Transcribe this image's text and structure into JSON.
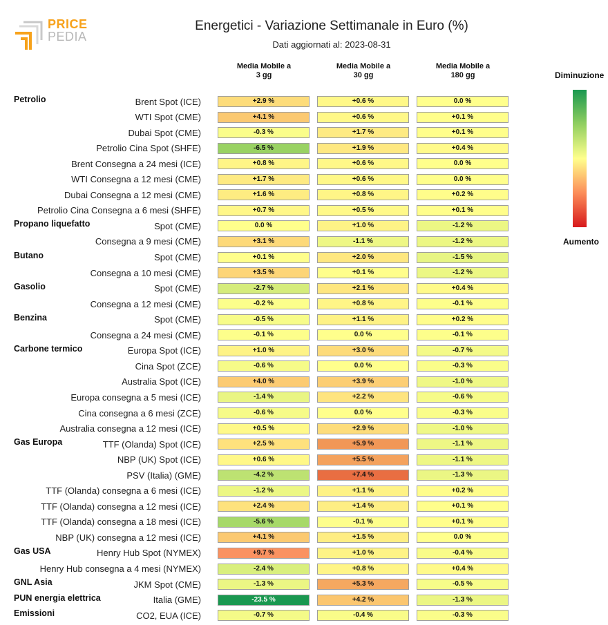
{
  "logo": {
    "line1": "PRICE",
    "line2": "PEDIA"
  },
  "chart_data": {
    "type": "table",
    "title": "Energetici - Variazione Settimanale in Euro (%)",
    "subtitle": "Dati aggiornati al: 2023-08-31",
    "columns": [
      "Media Mobile a\n3 gg",
      "Media Mobile a\n30 gg",
      "Media Mobile a\n180 gg"
    ],
    "legend": {
      "top": "Diminuzione",
      "bottom": "Aumento",
      "colors": [
        "#1a9850",
        "#91cf60",
        "#ffff8c",
        "#fc8d59",
        "#d7191c"
      ]
    },
    "rows": [
      {
        "group": "Petrolio",
        "label": "Brent Spot (ICE)",
        "values": [
          2.9,
          0.6,
          0.0
        ],
        "text": [
          "+2.9 %",
          "+0.6 %",
          "0.0 %"
        ]
      },
      {
        "group": "",
        "label": "WTI Spot (CME)",
        "values": [
          4.1,
          0.6,
          0.1
        ],
        "text": [
          "+4.1 %",
          "+0.6 %",
          "+0.1 %"
        ]
      },
      {
        "group": "",
        "label": "Dubai Spot (CME)",
        "values": [
          -0.3,
          1.7,
          0.1
        ],
        "text": [
          "-0.3 %",
          "+1.7 %",
          "+0.1 %"
        ]
      },
      {
        "group": "",
        "label": "Petrolio Cina Spot (SHFE)",
        "values": [
          -6.5,
          1.9,
          0.4
        ],
        "text": [
          "-6.5 %",
          "+1.9 %",
          "+0.4 %"
        ]
      },
      {
        "group": "",
        "label": "Brent Consegna a 24 mesi (ICE)",
        "values": [
          0.8,
          0.6,
          0.0
        ],
        "text": [
          "+0.8 %",
          "+0.6 %",
          "0.0 %"
        ]
      },
      {
        "group": "",
        "label": "WTI Consegna a 12 mesi (CME)",
        "values": [
          1.7,
          0.6,
          0.0
        ],
        "text": [
          "+1.7 %",
          "+0.6 %",
          "0.0 %"
        ]
      },
      {
        "group": "",
        "label": "Dubai Consegna a 12 mesi (CME)",
        "values": [
          1.6,
          0.8,
          0.2
        ],
        "text": [
          "+1.6 %",
          "+0.8 %",
          "+0.2 %"
        ]
      },
      {
        "group": "",
        "label": "Petrolio Cina Consegna a 6 mesi (SHFE)",
        "values": [
          0.7,
          0.5,
          0.1
        ],
        "text": [
          "+0.7 %",
          "+0.5 %",
          "+0.1 %"
        ]
      },
      {
        "group": "Propano liquefatto",
        "label": "Spot (CME)",
        "values": [
          0.0,
          1.0,
          -1.2
        ],
        "text": [
          "0.0 %",
          "+1.0 %",
          "-1.2 %"
        ]
      },
      {
        "group": "",
        "label": "Consegna a 9 mesi (CME)",
        "values": [
          3.1,
          -1.1,
          -1.2
        ],
        "text": [
          "+3.1 %",
          "-1.1 %",
          "-1.2 %"
        ]
      },
      {
        "group": "Butano",
        "label": "Spot (CME)",
        "values": [
          0.1,
          2.0,
          -1.5
        ],
        "text": [
          "+0.1 %",
          "+2.0 %",
          "-1.5 %"
        ]
      },
      {
        "group": "",
        "label": "Consegna a 10 mesi (CME)",
        "values": [
          3.5,
          0.1,
          -1.2
        ],
        "text": [
          "+3.5 %",
          "+0.1 %",
          "-1.2 %"
        ]
      },
      {
        "group": "Gasolio",
        "label": "Spot (CME)",
        "values": [
          -2.7,
          2.1,
          0.4
        ],
        "text": [
          "-2.7 %",
          "+2.1 %",
          "+0.4 %"
        ]
      },
      {
        "group": "",
        "label": "Consegna a 12 mesi (CME)",
        "values": [
          -0.2,
          0.8,
          -0.1
        ],
        "text": [
          "-0.2 %",
          "+0.8 %",
          "-0.1 %"
        ]
      },
      {
        "group": "Benzina",
        "label": "Spot (CME)",
        "values": [
          -0.5,
          1.1,
          0.2
        ],
        "text": [
          "-0.5 %",
          "+1.1 %",
          "+0.2 %"
        ]
      },
      {
        "group": "",
        "label": "Consegna a 24 mesi (CME)",
        "values": [
          -0.1,
          0.0,
          -0.1
        ],
        "text": [
          "-0.1 %",
          "0.0 %",
          "-0.1 %"
        ]
      },
      {
        "group": "Carbone termico",
        "label": "Europa Spot (ICE)",
        "values": [
          1.0,
          3.0,
          -0.7
        ],
        "text": [
          "+1.0 %",
          "+3.0 %",
          "-0.7 %"
        ]
      },
      {
        "group": "",
        "label": "Cina Spot (ZCE)",
        "values": [
          -0.6,
          0.0,
          -0.3
        ],
        "text": [
          "-0.6 %",
          "0.0 %",
          "-0.3 %"
        ]
      },
      {
        "group": "",
        "label": "Australia Spot (ICE)",
        "values": [
          4.0,
          3.9,
          -1.0
        ],
        "text": [
          "+4.0 %",
          "+3.9 %",
          "-1.0 %"
        ]
      },
      {
        "group": "",
        "label": "Europa consegna a 5 mesi (ICE)",
        "values": [
          -1.4,
          2.2,
          -0.6
        ],
        "text": [
          "-1.4 %",
          "+2.2 %",
          "-0.6 %"
        ]
      },
      {
        "group": "",
        "label": "Cina consegna a 6 mesi (ZCE)",
        "values": [
          -0.6,
          0.0,
          -0.3
        ],
        "text": [
          "-0.6 %",
          "0.0 %",
          "-0.3 %"
        ]
      },
      {
        "group": "",
        "label": "Australia consegna a 12 mesi (ICE)",
        "values": [
          0.5,
          2.9,
          -1.0
        ],
        "text": [
          "+0.5 %",
          "+2.9 %",
          "-1.0 %"
        ]
      },
      {
        "group": "Gas Europa",
        "label": "TTF (Olanda) Spot (ICE)",
        "values": [
          2.5,
          5.9,
          -1.1
        ],
        "text": [
          "+2.5 %",
          "+5.9 %",
          "-1.1 %"
        ]
      },
      {
        "group": "",
        "label": "NBP (UK) Spot (ICE)",
        "values": [
          0.6,
          5.5,
          -1.1
        ],
        "text": [
          "+0.6 %",
          "+5.5 %",
          "-1.1 %"
        ]
      },
      {
        "group": "",
        "label": "PSV (Italia) (GME)",
        "values": [
          -4.2,
          7.4,
          -1.3
        ],
        "text": [
          "-4.2 %",
          "+7.4 %",
          "-1.3 %"
        ]
      },
      {
        "group": "",
        "label": "TTF (Olanda) consegna a 6 mesi (ICE)",
        "values": [
          -1.2,
          1.1,
          0.2
        ],
        "text": [
          "-1.2 %",
          "+1.1 %",
          "+0.2 %"
        ]
      },
      {
        "group": "",
        "label": "TTF (Olanda) consegna a 12 mesi (ICE)",
        "values": [
          2.4,
          1.4,
          0.1
        ],
        "text": [
          "+2.4 %",
          "+1.4 %",
          "+0.1 %"
        ]
      },
      {
        "group": "",
        "label": "TTF (Olanda) consegna a 18 mesi (ICE)",
        "values": [
          -5.6,
          -0.1,
          0.1
        ],
        "text": [
          "-5.6 %",
          "-0.1 %",
          "+0.1 %"
        ]
      },
      {
        "group": "",
        "label": "NBP (UK) consegna a 12 mesi (ICE)",
        "values": [
          4.1,
          1.5,
          0.0
        ],
        "text": [
          "+4.1 %",
          "+1.5 %",
          "0.0 %"
        ]
      },
      {
        "group": "Gas USA",
        "label": "Henry Hub Spot (NYMEX)",
        "values": [
          9.7,
          1.0,
          -0.4
        ],
        "text": [
          "+9.7 %",
          "+1.0 %",
          "-0.4 %"
        ]
      },
      {
        "group": "",
        "label": "Henry Hub consegna a 4 mesi (NYMEX)",
        "values": [
          -2.4,
          0.8,
          0.4
        ],
        "text": [
          "-2.4 %",
          "+0.8 %",
          "+0.4 %"
        ]
      },
      {
        "group": "GNL Asia",
        "label": "JKM Spot (CME)",
        "values": [
          -1.3,
          5.3,
          -0.5
        ],
        "text": [
          "-1.3 %",
          "+5.3 %",
          "-0.5 %"
        ]
      },
      {
        "group": "PUN energia elettrica",
        "label": "Italia (GME)",
        "values": [
          -23.5,
          4.2,
          -1.3
        ],
        "text": [
          "-23.5 %",
          "+4.2 %",
          "-1.3 %"
        ]
      },
      {
        "group": "Emissioni",
        "label": "CO2, EUA (ICE)",
        "values": [
          -0.7,
          -0.4,
          -0.3
        ],
        "text": [
          "-0.7 %",
          "-0.4 %",
          "-0.3 %"
        ]
      }
    ]
  }
}
